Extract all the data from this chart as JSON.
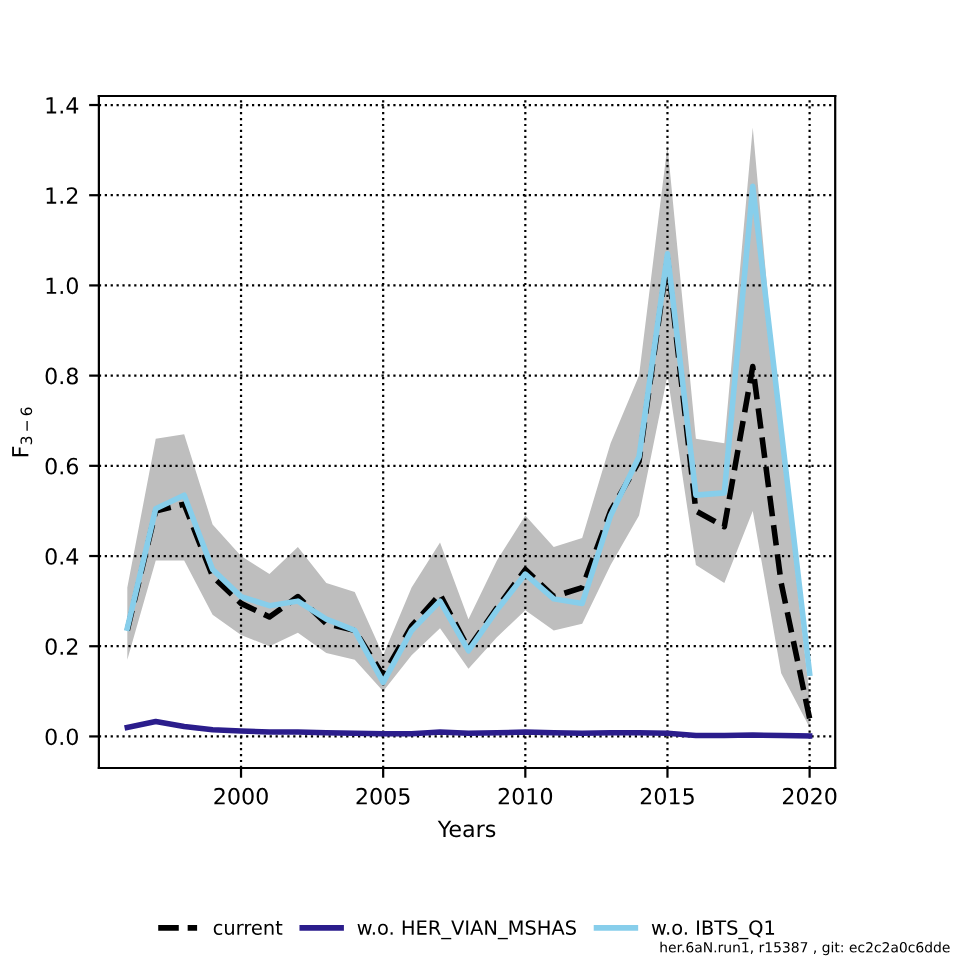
{
  "chart_data": {
    "type": "line",
    "xlabel": "Years",
    "ylabel": "F$_{3−6}$",
    "x": [
      1996,
      1997,
      1998,
      1999,
      2000,
      2001,
      2002,
      2003,
      2004,
      2005,
      2006,
      2007,
      2008,
      2009,
      2010,
      2011,
      2012,
      2013,
      2014,
      2015,
      2016,
      2017,
      2018,
      2019,
      2020
    ],
    "series": [
      {
        "name": "current",
        "color": "#000000",
        "line_style": "dashed",
        "values": [
          0.235,
          0.5,
          0.515,
          0.355,
          0.295,
          0.265,
          0.31,
          0.25,
          0.235,
          0.135,
          0.245,
          0.315,
          0.195,
          0.285,
          0.37,
          0.31,
          0.33,
          0.5,
          0.61,
          1.06,
          0.5,
          0.465,
          0.82,
          0.34,
          0.04
        ],
        "lower": [
          0.17,
          0.39,
          0.39,
          0.27,
          0.225,
          0.2,
          0.23,
          0.185,
          0.17,
          0.1,
          0.18,
          0.24,
          0.15,
          0.22,
          0.28,
          0.235,
          0.25,
          0.38,
          0.49,
          0.8,
          0.38,
          0.34,
          0.5,
          0.14,
          0.02
        ],
        "upper": [
          0.33,
          0.66,
          0.67,
          0.47,
          0.4,
          0.36,
          0.42,
          0.34,
          0.32,
          0.18,
          0.33,
          0.43,
          0.26,
          0.39,
          0.49,
          0.42,
          0.44,
          0.65,
          0.8,
          1.31,
          0.66,
          0.65,
          1.35,
          0.65,
          0.09
        ]
      },
      {
        "name": "w.o. HER_VIAN_MSHAS",
        "color": "#2b1d8c",
        "line_style": "solid",
        "values": [
          0.02,
          0.033,
          0.022,
          0.015,
          0.012,
          0.01,
          0.01,
          0.008,
          0.007,
          0.006,
          0.006,
          0.01,
          0.007,
          0.008,
          0.01,
          0.008,
          0.007,
          0.008,
          0.008,
          0.007,
          0.002,
          0.002,
          0.003,
          0.002,
          0.001
        ]
      },
      {
        "name": "w.o. IBTS_Q1",
        "color": "#87ceeb",
        "line_style": "solid",
        "values": [
          0.24,
          0.505,
          0.535,
          0.37,
          0.31,
          0.29,
          0.3,
          0.26,
          0.235,
          0.12,
          0.235,
          0.3,
          0.19,
          0.28,
          0.36,
          0.305,
          0.295,
          0.49,
          0.62,
          1.07,
          0.535,
          0.54,
          1.22,
          0.68,
          0.14
        ]
      }
    ],
    "xlim": [
      1995,
      2020.9
    ],
    "ylim": [
      -0.07,
      1.42
    ],
    "xticks": [
      2000,
      2005,
      2010,
      2015,
      2020
    ],
    "yticks": [
      {
        "value": 0,
        "label": "0.0"
      },
      0.2,
      0.4,
      0.6,
      0.8,
      {
        "value": 1,
        "label": "1.0"
      },
      1.2,
      1.4
    ],
    "grid": true,
    "legend": "bottom",
    "marker": "none",
    "annotations": [
      "her.6aN.run1, r15387 , git: ec2c2a0c6dde"
    ]
  }
}
